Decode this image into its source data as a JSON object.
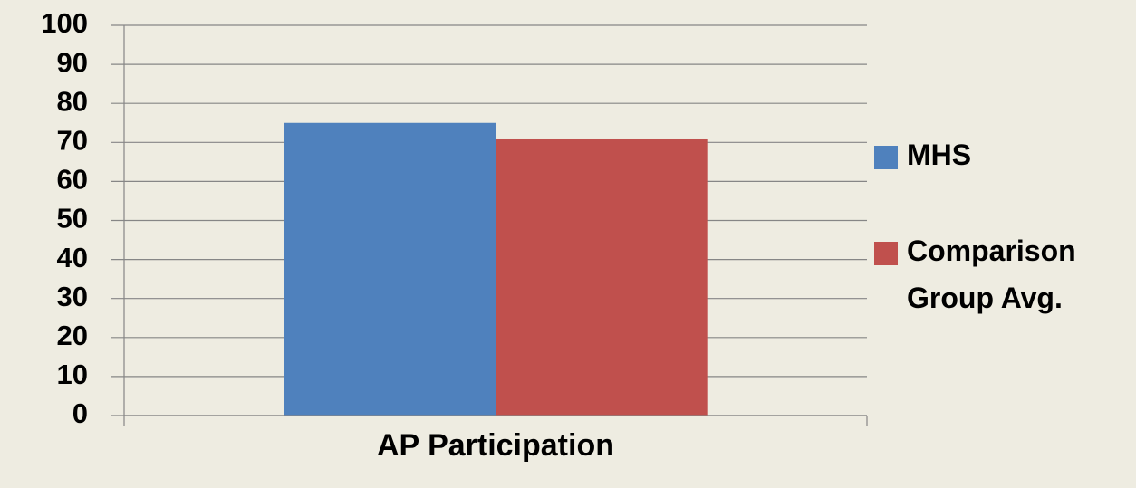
{
  "chart_data": {
    "type": "bar",
    "categories": [
      "AP Participation"
    ],
    "series": [
      {
        "name": "MHS",
        "color": "#4f81bd",
        "values": [
          75
        ]
      },
      {
        "name": "Comparison Group Avg.",
        "color": "#c0504d",
        "values": [
          71
        ]
      }
    ],
    "ylim": [
      0,
      100
    ],
    "yticks": [
      0,
      10,
      20,
      30,
      40,
      50,
      60,
      70,
      80,
      90,
      100
    ],
    "grid": true,
    "legend": "right"
  }
}
